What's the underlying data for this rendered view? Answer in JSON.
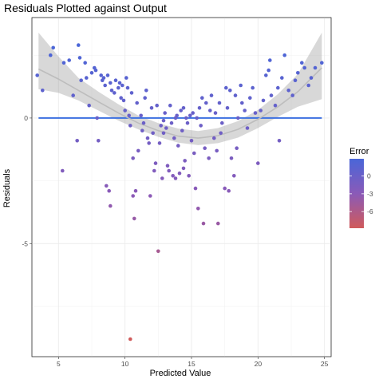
{
  "chart_data": {
    "type": "scatter",
    "title": "Residuals Plotted against Output",
    "xlabel": "Predicted Value",
    "ylabel": "Residuals",
    "xlim": [
      3.0,
      25.5
    ],
    "ylim": [
      -9.5,
      4.0
    ],
    "x_ticks": [
      5,
      10,
      15,
      20,
      25
    ],
    "y_ticks": [
      0,
      -5
    ],
    "grid": true,
    "legend": {
      "title": "Error",
      "placement": "right",
      "ticks": [
        0,
        -3,
        -6
      ],
      "range": [
        -8.8,
        2.9
      ],
      "color_high": "#4a66d8",
      "color_mid": "#8a5ab8",
      "color_low": "#d05a5a"
    },
    "reference_line": {
      "y": 0,
      "color": "#3b6fe0"
    },
    "smooth": {
      "x": [
        3.5,
        5,
        6.5,
        8,
        9.5,
        11,
        12.5,
        14,
        15.5,
        17,
        18.5,
        20,
        21.5,
        23,
        24.8
      ],
      "y": [
        1.95,
        1.55,
        1.1,
        0.65,
        0.2,
        -0.2,
        -0.5,
        -0.72,
        -0.8,
        -0.7,
        -0.45,
        -0.05,
        0.45,
        1.05,
        2.0
      ],
      "lower": [
        1.15,
        1.0,
        0.7,
        0.3,
        -0.1,
        -0.45,
        -0.75,
        -0.98,
        -1.08,
        -1.0,
        -0.78,
        -0.4,
        0.05,
        0.45,
        0.75
      ],
      "upper": [
        3.4,
        2.45,
        1.6,
        1.05,
        0.55,
        0.1,
        -0.2,
        -0.42,
        -0.52,
        -0.4,
        -0.12,
        0.32,
        0.95,
        1.75,
        3.4
      ]
    },
    "points": [
      [
        3.4,
        1.7
      ],
      [
        3.8,
        1.1
      ],
      [
        4.4,
        2.5
      ],
      [
        4.6,
        2.8
      ],
      [
        5.3,
        -2.1
      ],
      [
        5.4,
        2.2
      ],
      [
        5.8,
        2.3
      ],
      [
        6.1,
        0.9
      ],
      [
        6.4,
        -0.9
      ],
      [
        6.5,
        2.9
      ],
      [
        6.6,
        2.4
      ],
      [
        6.7,
        1.5
      ],
      [
        7.0,
        2.2
      ],
      [
        7.1,
        1.6
      ],
      [
        7.3,
        0.5
      ],
      [
        7.5,
        1.8
      ],
      [
        7.7,
        2.0
      ],
      [
        7.8,
        1.9
      ],
      [
        7.9,
        0.0
      ],
      [
        8.0,
        -0.9
      ],
      [
        8.2,
        1.7
      ],
      [
        8.3,
        1.5
      ],
      [
        8.4,
        1.6
      ],
      [
        8.5,
        1.3
      ],
      [
        8.6,
        -2.7
      ],
      [
        8.7,
        1.7
      ],
      [
        8.8,
        -2.9
      ],
      [
        8.9,
        -3.5
      ],
      [
        8.9,
        1.4
      ],
      [
        9.0,
        1.1
      ],
      [
        9.2,
        1.0
      ],
      [
        9.3,
        1.5
      ],
      [
        9.5,
        1.2
      ],
      [
        9.6,
        1.4
      ],
      [
        9.7,
        0.8
      ],
      [
        9.8,
        1.3
      ],
      [
        9.9,
        0.7
      ],
      [
        10.0,
        0.3
      ],
      [
        10.1,
        1.6
      ],
      [
        10.2,
        1.2
      ],
      [
        10.3,
        0.1
      ],
      [
        10.4,
        -0.3
      ],
      [
        10.5,
        1.0
      ],
      [
        10.6,
        -3.1
      ],
      [
        10.6,
        -1.6
      ],
      [
        10.7,
        -4.0
      ],
      [
        10.8,
        -2.9
      ],
      [
        10.4,
        -8.8
      ],
      [
        10.9,
        0.6
      ],
      [
        11.0,
        -1.3
      ],
      [
        11.2,
        0.1
      ],
      [
        11.3,
        -0.5
      ],
      [
        11.4,
        -0.2
      ],
      [
        11.5,
        0.8
      ],
      [
        11.6,
        1.1
      ],
      [
        11.7,
        -0.8
      ],
      [
        11.8,
        -1.0
      ],
      [
        11.9,
        -3.1
      ],
      [
        12.0,
        0.4
      ],
      [
        12.1,
        -0.6
      ],
      [
        12.2,
        -2.1
      ],
      [
        12.3,
        -1.8
      ],
      [
        12.4,
        0.5
      ],
      [
        12.5,
        -5.3
      ],
      [
        12.6,
        -1.0
      ],
      [
        12.7,
        -0.3
      ],
      [
        12.8,
        -2.4
      ],
      [
        12.9,
        -0.1
      ],
      [
        13.0,
        0.2
      ],
      [
        13.1,
        -0.4
      ],
      [
        13.2,
        -1.9
      ],
      [
        13.3,
        -2.1
      ],
      [
        13.4,
        0.5
      ],
      [
        13.5,
        -0.2
      ],
      [
        13.6,
        -2.3
      ],
      [
        13.7,
        -0.8
      ],
      [
        13.8,
        -2.4
      ],
      [
        13.9,
        0.1
      ],
      [
        14.0,
        -1.1
      ],
      [
        14.1,
        -2.2
      ],
      [
        14.2,
        0.3
      ],
      [
        14.3,
        -0.5
      ],
      [
        14.4,
        -2.0
      ],
      [
        14.5,
        -1.7
      ],
      [
        14.6,
        0.0
      ],
      [
        14.7,
        -0.2
      ],
      [
        14.8,
        -2.3
      ],
      [
        14.9,
        0.1
      ],
      [
        15.0,
        -0.9
      ],
      [
        15.1,
        0.2
      ],
      [
        15.2,
        -1.4
      ],
      [
        15.3,
        -2.8
      ],
      [
        15.4,
        0.0
      ],
      [
        15.5,
        -3.6
      ],
      [
        15.6,
        0.4
      ],
      [
        15.7,
        -0.3
      ],
      [
        15.8,
        0.8
      ],
      [
        15.9,
        -4.2
      ],
      [
        16.0,
        -1.2
      ],
      [
        16.1,
        0.6
      ],
      [
        16.3,
        -1.6
      ],
      [
        16.5,
        0.9
      ],
      [
        16.7,
        -0.8
      ],
      [
        16.8,
        0.2
      ],
      [
        16.9,
        -1.3
      ],
      [
        17.0,
        -4.2
      ],
      [
        17.1,
        0.6
      ],
      [
        17.2,
        -0.6
      ],
      [
        17.3,
        -0.2
      ],
      [
        17.5,
        -2.8
      ],
      [
        17.6,
        1.2
      ],
      [
        17.7,
        0.4
      ],
      [
        17.8,
        -2.9
      ],
      [
        17.9,
        1.1
      ],
      [
        18.0,
        -1.6
      ],
      [
        18.2,
        -2.3
      ],
      [
        18.3,
        0.9
      ],
      [
        18.4,
        -1.2
      ],
      [
        18.5,
        0.0
      ],
      [
        18.7,
        1.3
      ],
      [
        18.8,
        0.6
      ],
      [
        19.0,
        0.3
      ],
      [
        19.2,
        -0.4
      ],
      [
        19.4,
        0.8
      ],
      [
        19.6,
        1.2
      ],
      [
        19.8,
        0.2
      ],
      [
        20.0,
        -1.8
      ],
      [
        20.2,
        0.3
      ],
      [
        20.4,
        0.7
      ],
      [
        20.6,
        1.7
      ],
      [
        20.8,
        1.9
      ],
      [
        20.9,
        2.3
      ],
      [
        21.0,
        0.9
      ],
      [
        21.3,
        0.5
      ],
      [
        21.5,
        1.2
      ],
      [
        21.6,
        -0.9
      ],
      [
        21.8,
        1.6
      ],
      [
        22.0,
        2.5
      ],
      [
        22.3,
        1.1
      ],
      [
        22.6,
        0.9
      ],
      [
        22.8,
        1.5
      ],
      [
        23.0,
        1.8
      ],
      [
        23.3,
        2.2
      ],
      [
        23.5,
        2.0
      ],
      [
        23.8,
        1.3
      ],
      [
        24.0,
        1.6
      ],
      [
        24.3,
        2.0
      ],
      [
        24.8,
        2.2
      ],
      [
        12.9,
        -0.6
      ],
      [
        13.8,
        0.0
      ],
      [
        14.4,
        0.4
      ],
      [
        16.4,
        0.3
      ]
    ]
  }
}
